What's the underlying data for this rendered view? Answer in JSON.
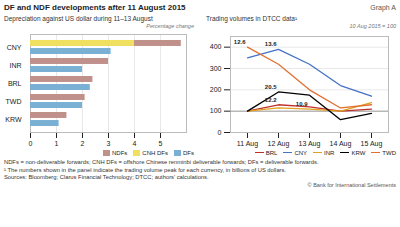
{
  "title": "DF and NDF developments after 11 August 2015",
  "graph_label": "Graph A",
  "footnotes": [
    "NDFs = non-deliverable forwards; CNH DFs = offshore Chinese renminbi deliverable forwards; DFs = deliverable forwards.",
    "¹  The numbers shown in the panel indicate the trading volume peak for each currency, in billions of US dollars.",
    "Sources: Bloomberg; Clarus Financial Technology; DTCC; authors’ calculations."
  ],
  "copyright": "© Bank for International Settlements",
  "chart_data": [
    {
      "type": "bar",
      "orientation": "horizontal",
      "title": "Depreciation against US dollar during 11–13 August",
      "subtitle": "Percentage change",
      "categories": [
        "CNY",
        "INR",
        "BRL",
        "TWD",
        "KRW"
      ],
      "series": [
        {
          "name": "NDFs",
          "color": "#c0908a",
          "values": [
            5.8,
            3.0,
            2.4,
            2.1,
            1.4
          ]
        },
        {
          "name": "CNH DFs",
          "color": "#f0e060",
          "values": [
            4.0,
            0,
            0,
            0,
            0
          ]
        },
        {
          "name": "DFs",
          "color": "#7ab0d4",
          "values": [
            3.1,
            2.0,
            2.3,
            2.0,
            1.1
          ]
        }
      ],
      "xlim": [
        0,
        6
      ],
      "xticks": [
        0,
        1,
        2,
        3,
        4,
        5
      ],
      "grid": true,
      "legend": "bottom"
    },
    {
      "type": "line",
      "title": "Trading volumes in DTCC data¹",
      "subtitle": "10 Aug 2015 = 100",
      "categories": [
        "11 Aug",
        "12 Aug",
        "13 Aug",
        "14 Aug",
        "15 Aug"
      ],
      "series": [
        {
          "name": "BRL",
          "color": "#c0302a",
          "values": [
            100,
            130,
            120,
            100,
            110
          ]
        },
        {
          "name": "CNY",
          "color": "#4472c4",
          "values": [
            350,
            390,
            320,
            220,
            170
          ]
        },
        {
          "name": "INR",
          "color": "#e0a020",
          "values": [
            100,
            115,
            110,
            100,
            140
          ]
        },
        {
          "name": "KRW",
          "color": "#000000",
          "values": [
            100,
            190,
            175,
            60,
            90
          ]
        },
        {
          "name": "TWD",
          "color": "#e07030",
          "values": [
            400,
            320,
            200,
            115,
            130
          ]
        }
      ],
      "ylim": [
        0,
        450
      ],
      "yticks": [
        0,
        100,
        200,
        300,
        400
      ],
      "grid": true,
      "legend": "bottom",
      "baseline": 100,
      "annotations": [
        {
          "x": "11 Aug",
          "y": 400,
          "text": "12.6"
        },
        {
          "x": "12 Aug",
          "y": 390,
          "text": "13.6"
        },
        {
          "x": "12 Aug",
          "y": 190,
          "text": "20.5"
        },
        {
          "x": "12 Aug",
          "y": 130,
          "text": "12.2"
        },
        {
          "x": "13 Aug",
          "y": 110,
          "text": "10.9"
        }
      ]
    }
  ]
}
